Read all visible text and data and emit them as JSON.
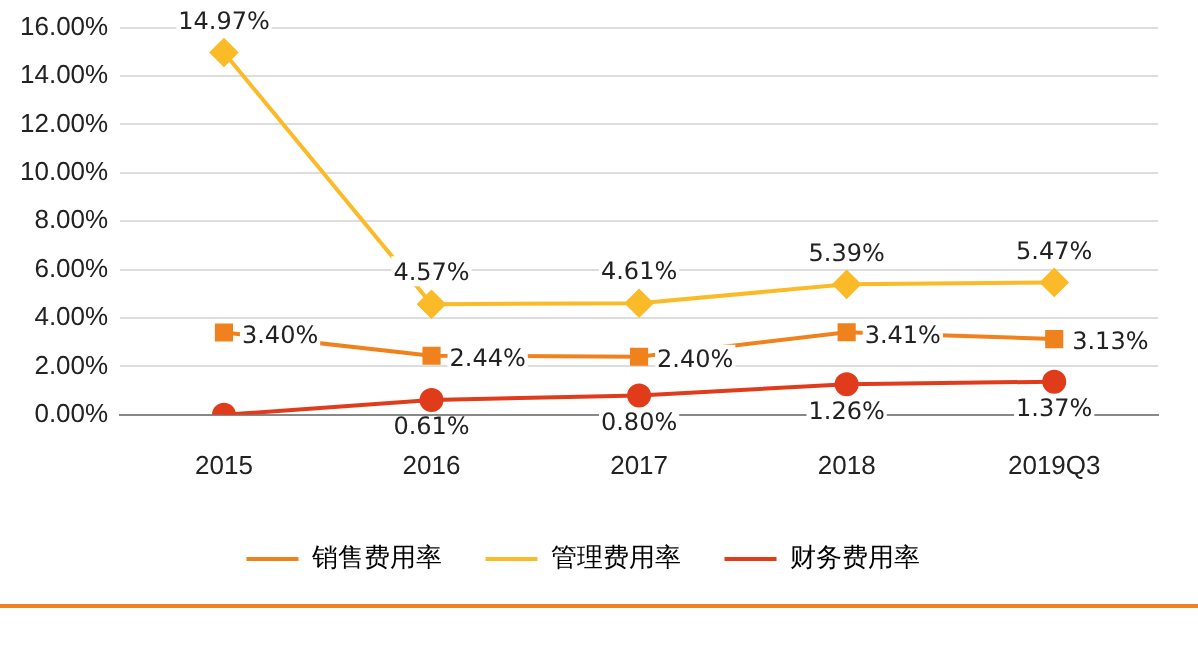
{
  "chart_data": {
    "type": "line",
    "categories": [
      "2015",
      "2016",
      "2017",
      "2018",
      "2019Q3"
    ],
    "series": [
      {
        "name": "销售费用率",
        "color": "#f0821e",
        "marker": "square",
        "values": [
          3.4,
          2.44,
          2.4,
          3.41,
          3.13
        ],
        "value_labels": [
          "3.40%",
          "2.44%",
          "2.40%",
          "3.41%",
          "3.13%"
        ]
      },
      {
        "name": "管理费用率",
        "color": "#fbbb28",
        "marker": "diamond",
        "values": [
          14.97,
          4.57,
          4.61,
          5.39,
          5.47
        ],
        "value_labels": [
          "14.97%",
          "4.57%",
          "4.61%",
          "5.39%",
          "5.47%"
        ]
      },
      {
        "name": "财务费用率",
        "color": "#e03c1c",
        "marker": "circle",
        "values": [
          0,
          0.61,
          0.8,
          1.26,
          1.37
        ],
        "value_labels": [
          null,
          "0.61%",
          "0.80%",
          "1.26%",
          "1.37%"
        ]
      }
    ],
    "ylim": [
      0,
      16
    ],
    "yticks": [
      {
        "value": 0,
        "label": "0.00%"
      },
      {
        "value": 2,
        "label": "2.00%"
      },
      {
        "value": 4,
        "label": "4.00%"
      },
      {
        "value": 6,
        "label": "6.00%"
      },
      {
        "value": 8,
        "label": "8.00%"
      },
      {
        "value": 10,
        "label": "10.00%"
      },
      {
        "value": 12,
        "label": "12.00%"
      },
      {
        "value": 14,
        "label": "14.00%"
      },
      {
        "value": 16,
        "label": "16.00%"
      }
    ],
    "grid": "y",
    "legend": "bottom",
    "line_style": "solid"
  }
}
